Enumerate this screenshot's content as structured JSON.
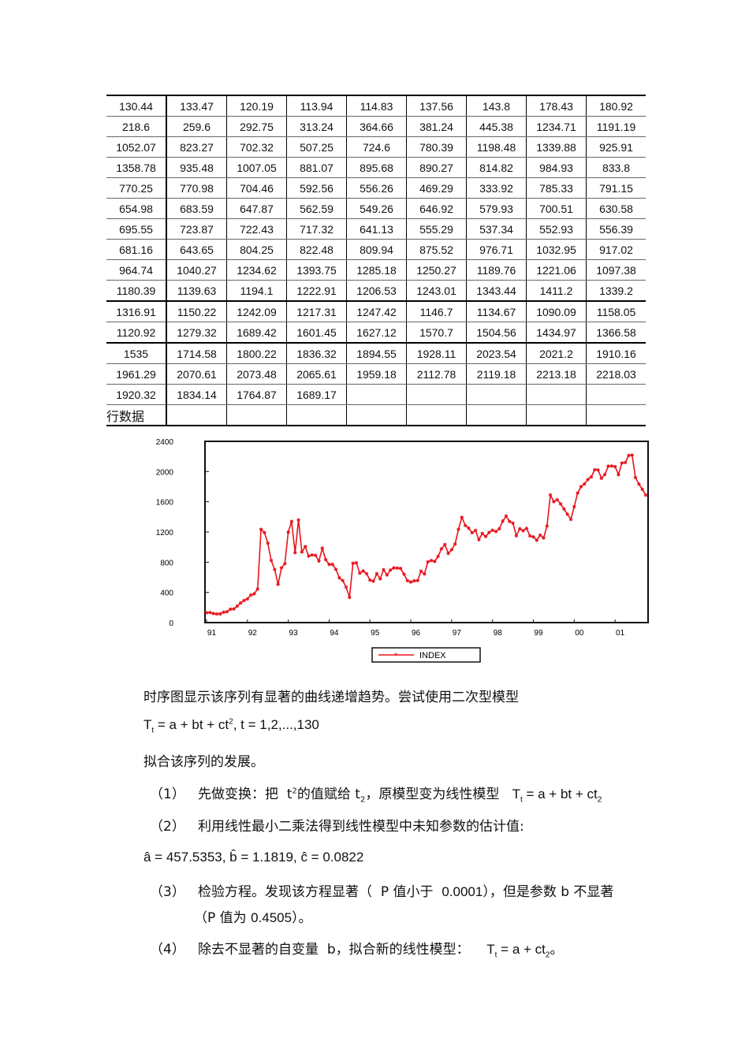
{
  "table": {
    "rows": [
      [
        "130.44",
        "133.47",
        "120.19",
        "113.94",
        "114.83",
        "137.56",
        "143.8",
        "178.43",
        "180.92"
      ],
      [
        "218.6",
        "259.6",
        "292.75",
        "313.24",
        "364.66",
        "381.24",
        "445.38",
        "1234.71",
        "1191.19"
      ],
      [
        "1052.07",
        "823.27",
        "702.32",
        "507.25",
        "724.6",
        "780.39",
        "1198.48",
        "1339.88",
        "925.91"
      ],
      [
        "1358.78",
        "935.48",
        "1007.05",
        "881.07",
        "895.68",
        "890.27",
        "814.82",
        "984.93",
        "833.8"
      ],
      [
        "770.25",
        "770.98",
        "704.46",
        "592.56",
        "556.26",
        "469.29",
        "333.92",
        "785.33",
        "791.15"
      ],
      [
        "654.98",
        "683.59",
        "647.87",
        "562.59",
        "549.26",
        "646.92",
        "579.93",
        "700.51",
        "630.58"
      ],
      [
        "695.55",
        "723.87",
        "722.43",
        "717.32",
        "641.13",
        "555.29",
        "537.34",
        "552.93",
        "556.39"
      ],
      [
        "681.16",
        "643.65",
        "804.25",
        "822.48",
        "809.94",
        "875.52",
        "976.71",
        "1032.95",
        "917.02"
      ],
      [
        "964.74",
        "1040.27",
        "1234.62",
        "1393.75",
        "1285.18",
        "1250.27",
        "1189.76",
        "1221.06",
        "1097.38"
      ],
      [
        "1180.39",
        "1139.63",
        "1194.1",
        "1222.91",
        "1206.53",
        "1243.01",
        "1343.44",
        "1411.2",
        "1339.2"
      ],
      [
        "1316.91",
        "1150.22",
        "1242.09",
        "1217.31",
        "1247.42",
        "1146.7",
        "1134.67",
        "1090.09",
        "1158.05"
      ],
      [
        "1120.92",
        "1279.32",
        "1689.42",
        "1601.45",
        "1627.12",
        "1570.7",
        "1504.56",
        "1434.97",
        "1366.58"
      ],
      [
        "1535",
        "1714.58",
        "1800.22",
        "1836.32",
        "1894.55",
        "1928.11",
        "2023.54",
        "2021.2",
        "1910.16"
      ],
      [
        "1961.29",
        "2070.61",
        "2073.48",
        "2065.61",
        "1959.18",
        "2112.78",
        "2119.18",
        "2213.18",
        "2218.03"
      ],
      [
        "1920.32",
        "1834.14",
        "1764.87",
        "1689.17",
        "",
        "",
        "",
        "",
        ""
      ],
      [
        "行数据",
        "",
        "",
        "",
        "",
        "",
        "",
        "",
        ""
      ]
    ]
  },
  "chart_data": {
    "type": "line",
    "ylim": [
      0,
      2400
    ],
    "yticks": [
      0,
      400,
      800,
      1200,
      1600,
      2000,
      2400
    ],
    "xtick_labels": [
      "91",
      "92",
      "93",
      "94",
      "95",
      "96",
      "97",
      "98",
      "99",
      "00",
      "01"
    ],
    "series": [
      {
        "name": "INDEX",
        "color": "#e8141c",
        "values": [
          130.44,
          133.47,
          120.19,
          113.94,
          114.83,
          137.56,
          143.8,
          178.43,
          180.92,
          218.6,
          259.6,
          292.75,
          313.24,
          364.66,
          381.24,
          445.38,
          1234.71,
          1191.19,
          1052.07,
          823.27,
          702.32,
          507.25,
          724.6,
          780.39,
          1198.48,
          1339.88,
          925.91,
          1358.78,
          935.48,
          1007.05,
          881.07,
          895.68,
          890.27,
          814.82,
          984.93,
          833.8,
          770.25,
          770.98,
          704.46,
          592.56,
          556.26,
          469.29,
          333.92,
          785.33,
          791.15,
          654.98,
          683.59,
          647.87,
          562.59,
          549.26,
          646.92,
          579.93,
          700.51,
          630.58,
          695.55,
          723.87,
          722.43,
          717.32,
          641.13,
          555.29,
          537.34,
          552.93,
          556.39,
          681.16,
          643.65,
          804.25,
          822.48,
          809.94,
          875.52,
          976.71,
          1032.95,
          917.02,
          964.74,
          1040.27,
          1234.62,
          1393.75,
          1285.18,
          1250.27,
          1189.76,
          1221.06,
          1097.38,
          1180.39,
          1139.63,
          1194.1,
          1222.91,
          1206.53,
          1243.01,
          1343.44,
          1411.2,
          1339.2,
          1316.91,
          1150.22,
          1242.09,
          1217.31,
          1247.42,
          1146.7,
          1134.67,
          1090.09,
          1158.05,
          1120.92,
          1279.32,
          1689.42,
          1601.45,
          1627.12,
          1570.7,
          1504.56,
          1434.97,
          1366.58,
          1535,
          1714.58,
          1800.22,
          1836.32,
          1894.55,
          1928.11,
          2023.54,
          2021.2,
          1910.16,
          1961.29,
          2070.61,
          2073.48,
          2065.61,
          1959.18,
          2112.78,
          2119.18,
          2213.18,
          2218.03,
          1920.32,
          1834.14,
          1764.87,
          1689.17
        ]
      }
    ],
    "legend": "bottom-center"
  },
  "text": {
    "p1": "时序图显示该序列有显著的曲线递增趋势。尝试使用二次型模型",
    "p3": "拟合该序列的发展。",
    "l1_num": "（1）",
    "l1_text": "先做变换：把",
    "l1_text2": "的值赋给",
    "l1_text3": "，原模型变为线性模型",
    "l2_num": "（2）",
    "l2_text": "利用线性最小二乘法得到线性模型中未知参数的估计值:",
    "est": "â = 457.5353, b̂ = 1.1819, ĉ = 0.0822",
    "l3_num": "（3）",
    "l3_a": "检验方程。发现该方程显著（",
    "l3_b": "P 值小于",
    "l3_c": "0.0001",
    "l3_d": "），但是参数",
    "l3_e": "b 不显著",
    "l3_f": "（P 值为",
    "l3_g": "0.4505",
    "l3_h": "）。",
    "l4_num": "（4）",
    "l4_a": "除去不显著的自变量",
    "l4_b": "b",
    "l4_c": "，拟合新的线性模型：",
    "l4_d": "。"
  }
}
